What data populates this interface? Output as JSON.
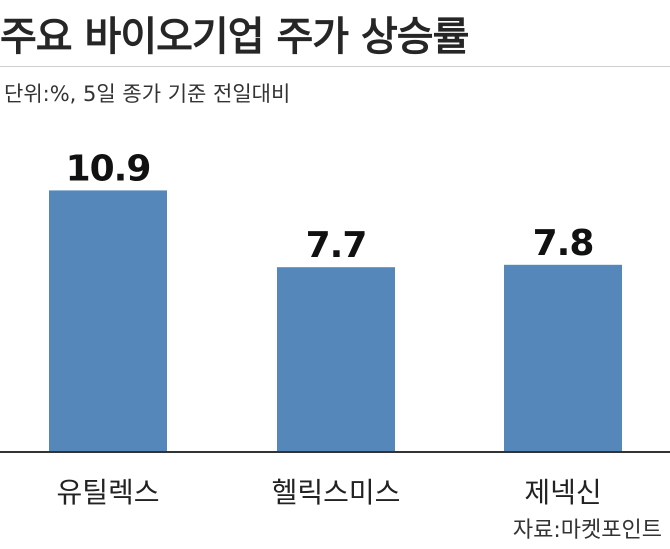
{
  "title": "주요 바이오기업 주가 상승률",
  "subtitle": "단위:%, 5일 종가 기준 전일대비",
  "source": "자료:마켓포인트",
  "chart_data": {
    "type": "bar",
    "categories": [
      "유틸렉스",
      "헬릭스미스",
      "제넥신"
    ],
    "values": [
      10.9,
      7.7,
      7.8
    ],
    "value_labels": [
      "10.9",
      "7.7",
      "7.8"
    ],
    "ylim": [
      0,
      12.5
    ],
    "bar_color": "#5587ba",
    "grid": false,
    "legend": "none"
  }
}
